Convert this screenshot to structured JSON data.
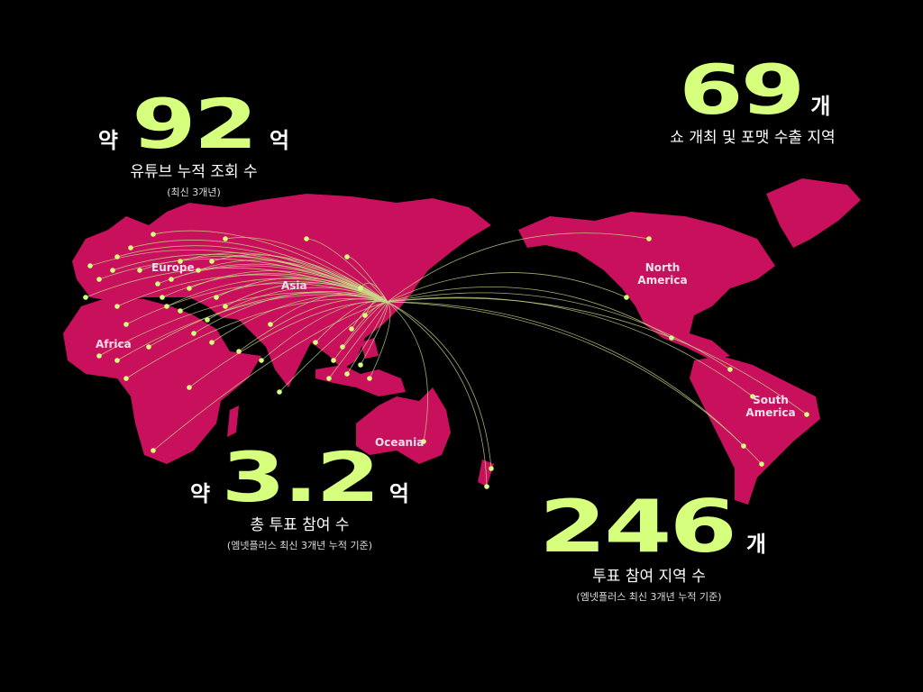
{
  "colors": {
    "land": "#c8105c",
    "accent": "#d6ff7e",
    "background": "#000000",
    "arc": "#c9d98a"
  },
  "stats": [
    {
      "prefix": "약",
      "value": "92",
      "unit": "억",
      "label": "유튜브 누적 조회 수",
      "note": "(최신 3개년)"
    },
    {
      "prefix": "",
      "value": "69",
      "unit": "개",
      "label": "쇼 개최 및 포맷 수출 지역",
      "note": ""
    },
    {
      "prefix": "약",
      "value": "3.2",
      "unit": "억",
      "label": "총 투표 참여 수",
      "note": "(엠넷플러스 최신 3개년 누적 기준)"
    },
    {
      "prefix": "",
      "value": "246",
      "unit": "개",
      "label": "투표 참여 지역 수",
      "note": "(엠넷플러스 최신 3개년 누적 기준)"
    }
  ],
  "regions": {
    "europe": "Europe",
    "asia": "Asia",
    "africa": "Africa",
    "north_america": "North America",
    "south_america": "South America",
    "oceania": "Oceania"
  }
}
